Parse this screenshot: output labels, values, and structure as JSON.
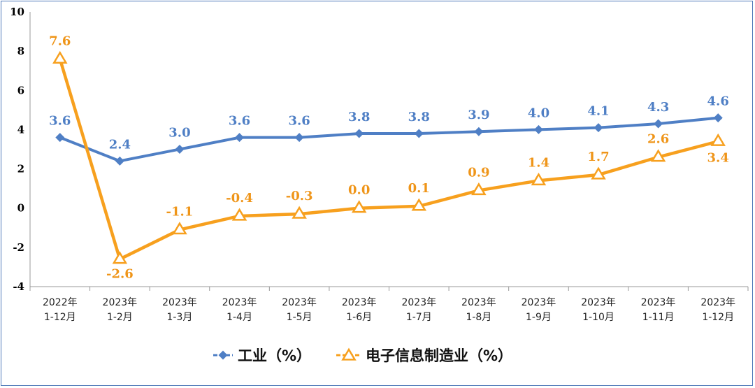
{
  "chart_data": {
    "type": "line",
    "categories": [
      [
        "2022年",
        "1-12月"
      ],
      [
        "2023年",
        "1-2月"
      ],
      [
        "2023年",
        "1-3月"
      ],
      [
        "2023年",
        "1-4月"
      ],
      [
        "2023年",
        "1-5月"
      ],
      [
        "2023年",
        "1-6月"
      ],
      [
        "2023年",
        "1-7月"
      ],
      [
        "2023年",
        "1-8月"
      ],
      [
        "2023年",
        "1-9月"
      ],
      [
        "2023年",
        "1-10月"
      ],
      [
        "2023年",
        "1-11月"
      ],
      [
        "2023年",
        "1-12月"
      ]
    ],
    "series": [
      {
        "name": "工业（%）",
        "marker": "diamond",
        "color": "#4f7fc5",
        "label_color": "#4f7fc5",
        "values": [
          3.6,
          2.4,
          3.0,
          3.6,
          3.6,
          3.8,
          3.8,
          3.9,
          4.0,
          4.1,
          4.3,
          4.6
        ],
        "labels": [
          "3.6",
          "2.4",
          "3.0",
          "3.6",
          "3.6",
          "3.8",
          "3.8",
          "3.9",
          "4.0",
          "4.1",
          "4.3",
          "4.6"
        ]
      },
      {
        "name": "电子信息制造业（%）",
        "marker": "triangle",
        "color": "#f7a01e",
        "label_color": "#ef9519",
        "values": [
          7.6,
          -2.6,
          -1.1,
          -0.4,
          -0.3,
          0.0,
          0.1,
          0.9,
          1.4,
          1.7,
          2.6,
          3.4
        ],
        "labels": [
          "7.6",
          "-2.6",
          "-1.1",
          "-0.4",
          "-0.3",
          "0.0",
          "0.1",
          "0.9",
          "1.4",
          "1.7",
          "2.6",
          "3.4"
        ]
      }
    ],
    "ylim": [
      -4,
      10
    ],
    "yticks": [
      -4,
      -2,
      0,
      2,
      4,
      6,
      8,
      10
    ],
    "grid": false,
    "legend_position": "bottom-center"
  }
}
